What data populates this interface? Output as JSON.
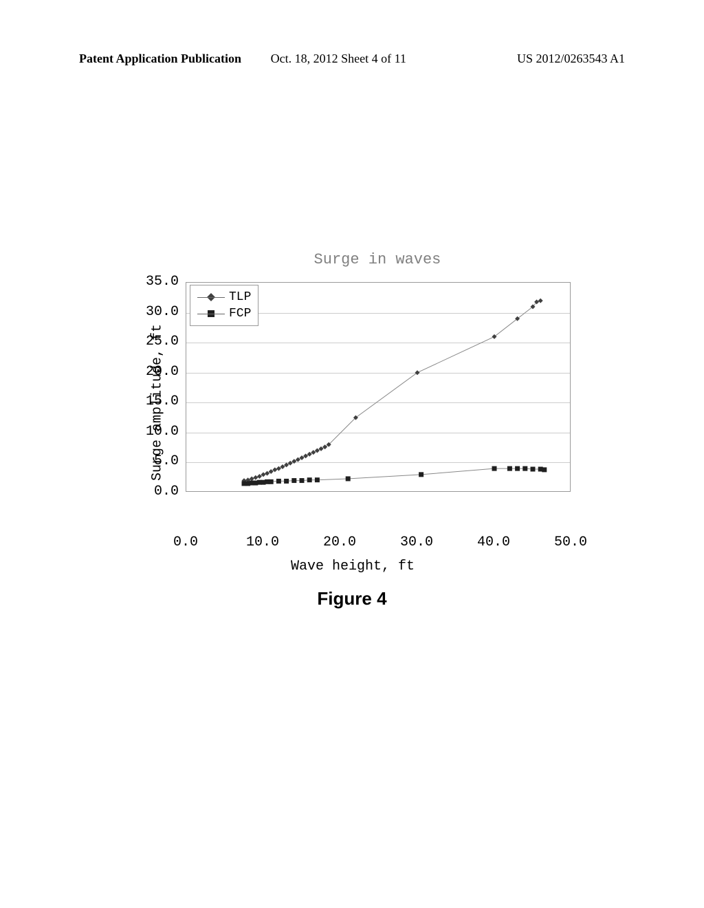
{
  "header": {
    "left": "Patent Application Publication",
    "center": "Oct. 18, 2012  Sheet 4 of 11",
    "right": "US 2012/0263543 A1"
  },
  "chart": {
    "type": "scatter-line",
    "title": "Surge in waves",
    "ylabel": "Surge amplitude, ft",
    "xlabel": "Wave height, ft",
    "xlim": [
      0,
      50
    ],
    "ylim": [
      0,
      35
    ],
    "xtick_step": 10,
    "ytick_step": 5,
    "xticks": [
      "0.0",
      "10.0",
      "20.0",
      "30.0",
      "40.0",
      "50.0"
    ],
    "yticks": [
      "0.0",
      "5.0",
      "10.0",
      "15.0",
      "20.0",
      "25.0",
      "30.0",
      "35.0"
    ],
    "background_color": "#ffffff",
    "grid_color": "#cccccc",
    "border_color": "#999999",
    "title_fontsize": 22,
    "label_fontsize": 20,
    "tick_fontsize": 20,
    "font_family": "Courier New",
    "legend": {
      "position": "top-left",
      "items": [
        {
          "label": "TLP",
          "marker": "diamond",
          "color": "#404040"
        },
        {
          "label": "FCP",
          "marker": "square",
          "color": "#202020"
        }
      ]
    },
    "series": [
      {
        "name": "TLP",
        "marker": "diamond",
        "marker_size": 7,
        "color": "#404040",
        "line_color": "#888888",
        "line_width": 1,
        "x": [
          7.5,
          8.0,
          8.5,
          9.0,
          9.5,
          10.0,
          10.5,
          11.0,
          11.5,
          12.0,
          12.5,
          13.0,
          13.5,
          14.0,
          14.5,
          15.0,
          15.5,
          16.0,
          16.5,
          17.0,
          17.5,
          18.0,
          18.5,
          22.0,
          30.0,
          40.0,
          43.0,
          45.0,
          45.5,
          46.0
        ],
        "y": [
          2.0,
          2.1,
          2.3,
          2.5,
          2.7,
          3.0,
          3.2,
          3.5,
          3.8,
          4.0,
          4.3,
          4.6,
          4.9,
          5.2,
          5.5,
          5.8,
          6.1,
          6.4,
          6.7,
          7.0,
          7.3,
          7.6,
          8.0,
          12.5,
          20.0,
          26.0,
          29.0,
          31.0,
          31.8,
          32.0
        ]
      },
      {
        "name": "FCP",
        "marker": "square",
        "marker_size": 7,
        "color": "#202020",
        "line_color": "#888888",
        "line_width": 1,
        "x": [
          7.5,
          8.0,
          8.5,
          9.0,
          9.5,
          10.0,
          10.5,
          11.0,
          12.0,
          13.0,
          14.0,
          15.0,
          16.0,
          17.0,
          21.0,
          30.5,
          40.0,
          42.0,
          43.0,
          44.0,
          45.0,
          46.0,
          46.5
        ],
        "y": [
          1.5,
          1.5,
          1.6,
          1.6,
          1.7,
          1.7,
          1.8,
          1.8,
          1.9,
          1.9,
          2.0,
          2.0,
          2.1,
          2.1,
          2.3,
          3.0,
          4.0,
          4.0,
          4.0,
          4.0,
          3.9,
          3.9,
          3.8
        ]
      }
    ]
  },
  "figure_caption": "Figure 4"
}
